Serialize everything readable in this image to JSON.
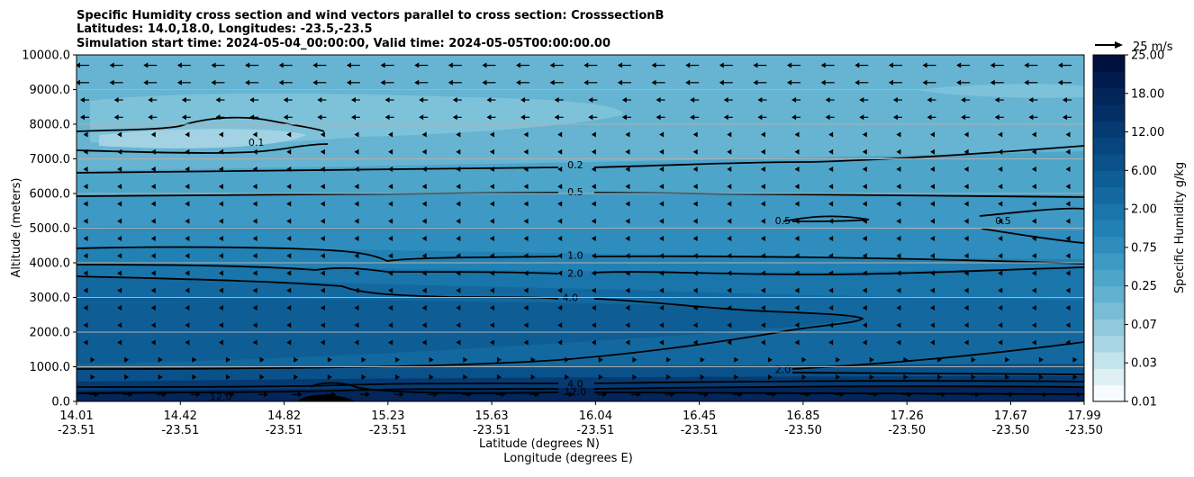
{
  "chart_data": {
    "type": "contour",
    "title_lines": [
      "Specific Humidity cross section and wind vectors parallel to cross section: CrosssectionB",
      "Latitudes: 14.0,18.0, Longitudes: -23.5,-23.5",
      "Simulation start time: 2024-05-04_00:00:00, Valid time: 2024-05-05T00:00:00.00"
    ],
    "xlabel": "Latitude (degrees N)",
    "xlabel2": "Longitude (degrees E)",
    "ylabel": "Altitude (meters)",
    "ylim": [
      0,
      10000
    ],
    "y_ticks": [
      0,
      1000,
      2000,
      3000,
      4000,
      5000,
      6000,
      7000,
      8000,
      9000,
      10000
    ],
    "y_tick_labels": [
      "0.0",
      "1000.0",
      "2000.0",
      "3000.0",
      "4000.0",
      "5000.0",
      "6000.0",
      "7000.0",
      "8000.0",
      "9000.0",
      "10000.0"
    ],
    "x_ticks_lat": [
      "14.01",
      "14.42",
      "14.82",
      "15.23",
      "15.63",
      "16.04",
      "16.45",
      "16.85",
      "17.26",
      "17.67",
      "17.99"
    ],
    "x_ticks_lon": [
      "-23.51",
      "-23.51",
      "-23.51",
      "-23.51",
      "-23.51",
      "-23.51",
      "-23.51",
      "-23.50",
      "-23.50",
      "-23.50",
      "-23.50"
    ],
    "colorbar": {
      "label": "Specific Humidity g/kg",
      "tick_labels": [
        "0.01",
        "0.03",
        "0.07",
        "0.25",
        "0.75",
        "2.00",
        "6.00",
        "12.00",
        "18.00",
        "25.00"
      ],
      "level_colors": [
        "#f7fbff",
        "#dff0f4",
        "#c4e4ec",
        "#a9d6e4",
        "#90c9dc",
        "#78bdd5",
        "#62b1d0",
        "#4ea5ca",
        "#3e99c4",
        "#2e8dbd",
        "#2281b4",
        "#1975aa",
        "#13699f",
        "#0e5d95",
        "#0a518a",
        "#07457e",
        "#053a72",
        "#032f66",
        "#02255a",
        "#011b4e",
        "#001140"
      ]
    },
    "wind_key": {
      "label": "25 m/s"
    },
    "contour_labels": [
      {
        "text": "0.1",
        "x": 14.72,
        "y": 7450
      },
      {
        "text": "0.2",
        "x": 15.98,
        "y": 6800
      },
      {
        "text": "0.5",
        "x": 15.98,
        "y": 6020
      },
      {
        "text": "0.5",
        "x": 16.8,
        "y": 5200
      },
      {
        "text": "0.5",
        "x": 17.67,
        "y": 5200
      },
      {
        "text": "1.0",
        "x": 15.98,
        "y": 4200
      },
      {
        "text": "2.0",
        "x": 15.98,
        "y": 3680
      },
      {
        "text": "4.0",
        "x": 15.96,
        "y": 2980
      },
      {
        "text": "2.0",
        "x": 16.8,
        "y": 900
      },
      {
        "text": "4.0",
        "x": 15.98,
        "y": 480
      },
      {
        "text": "12.0",
        "x": 15.98,
        "y": 260
      },
      {
        "text": "12.0",
        "x": 14.58,
        "y": 120
      }
    ]
  }
}
